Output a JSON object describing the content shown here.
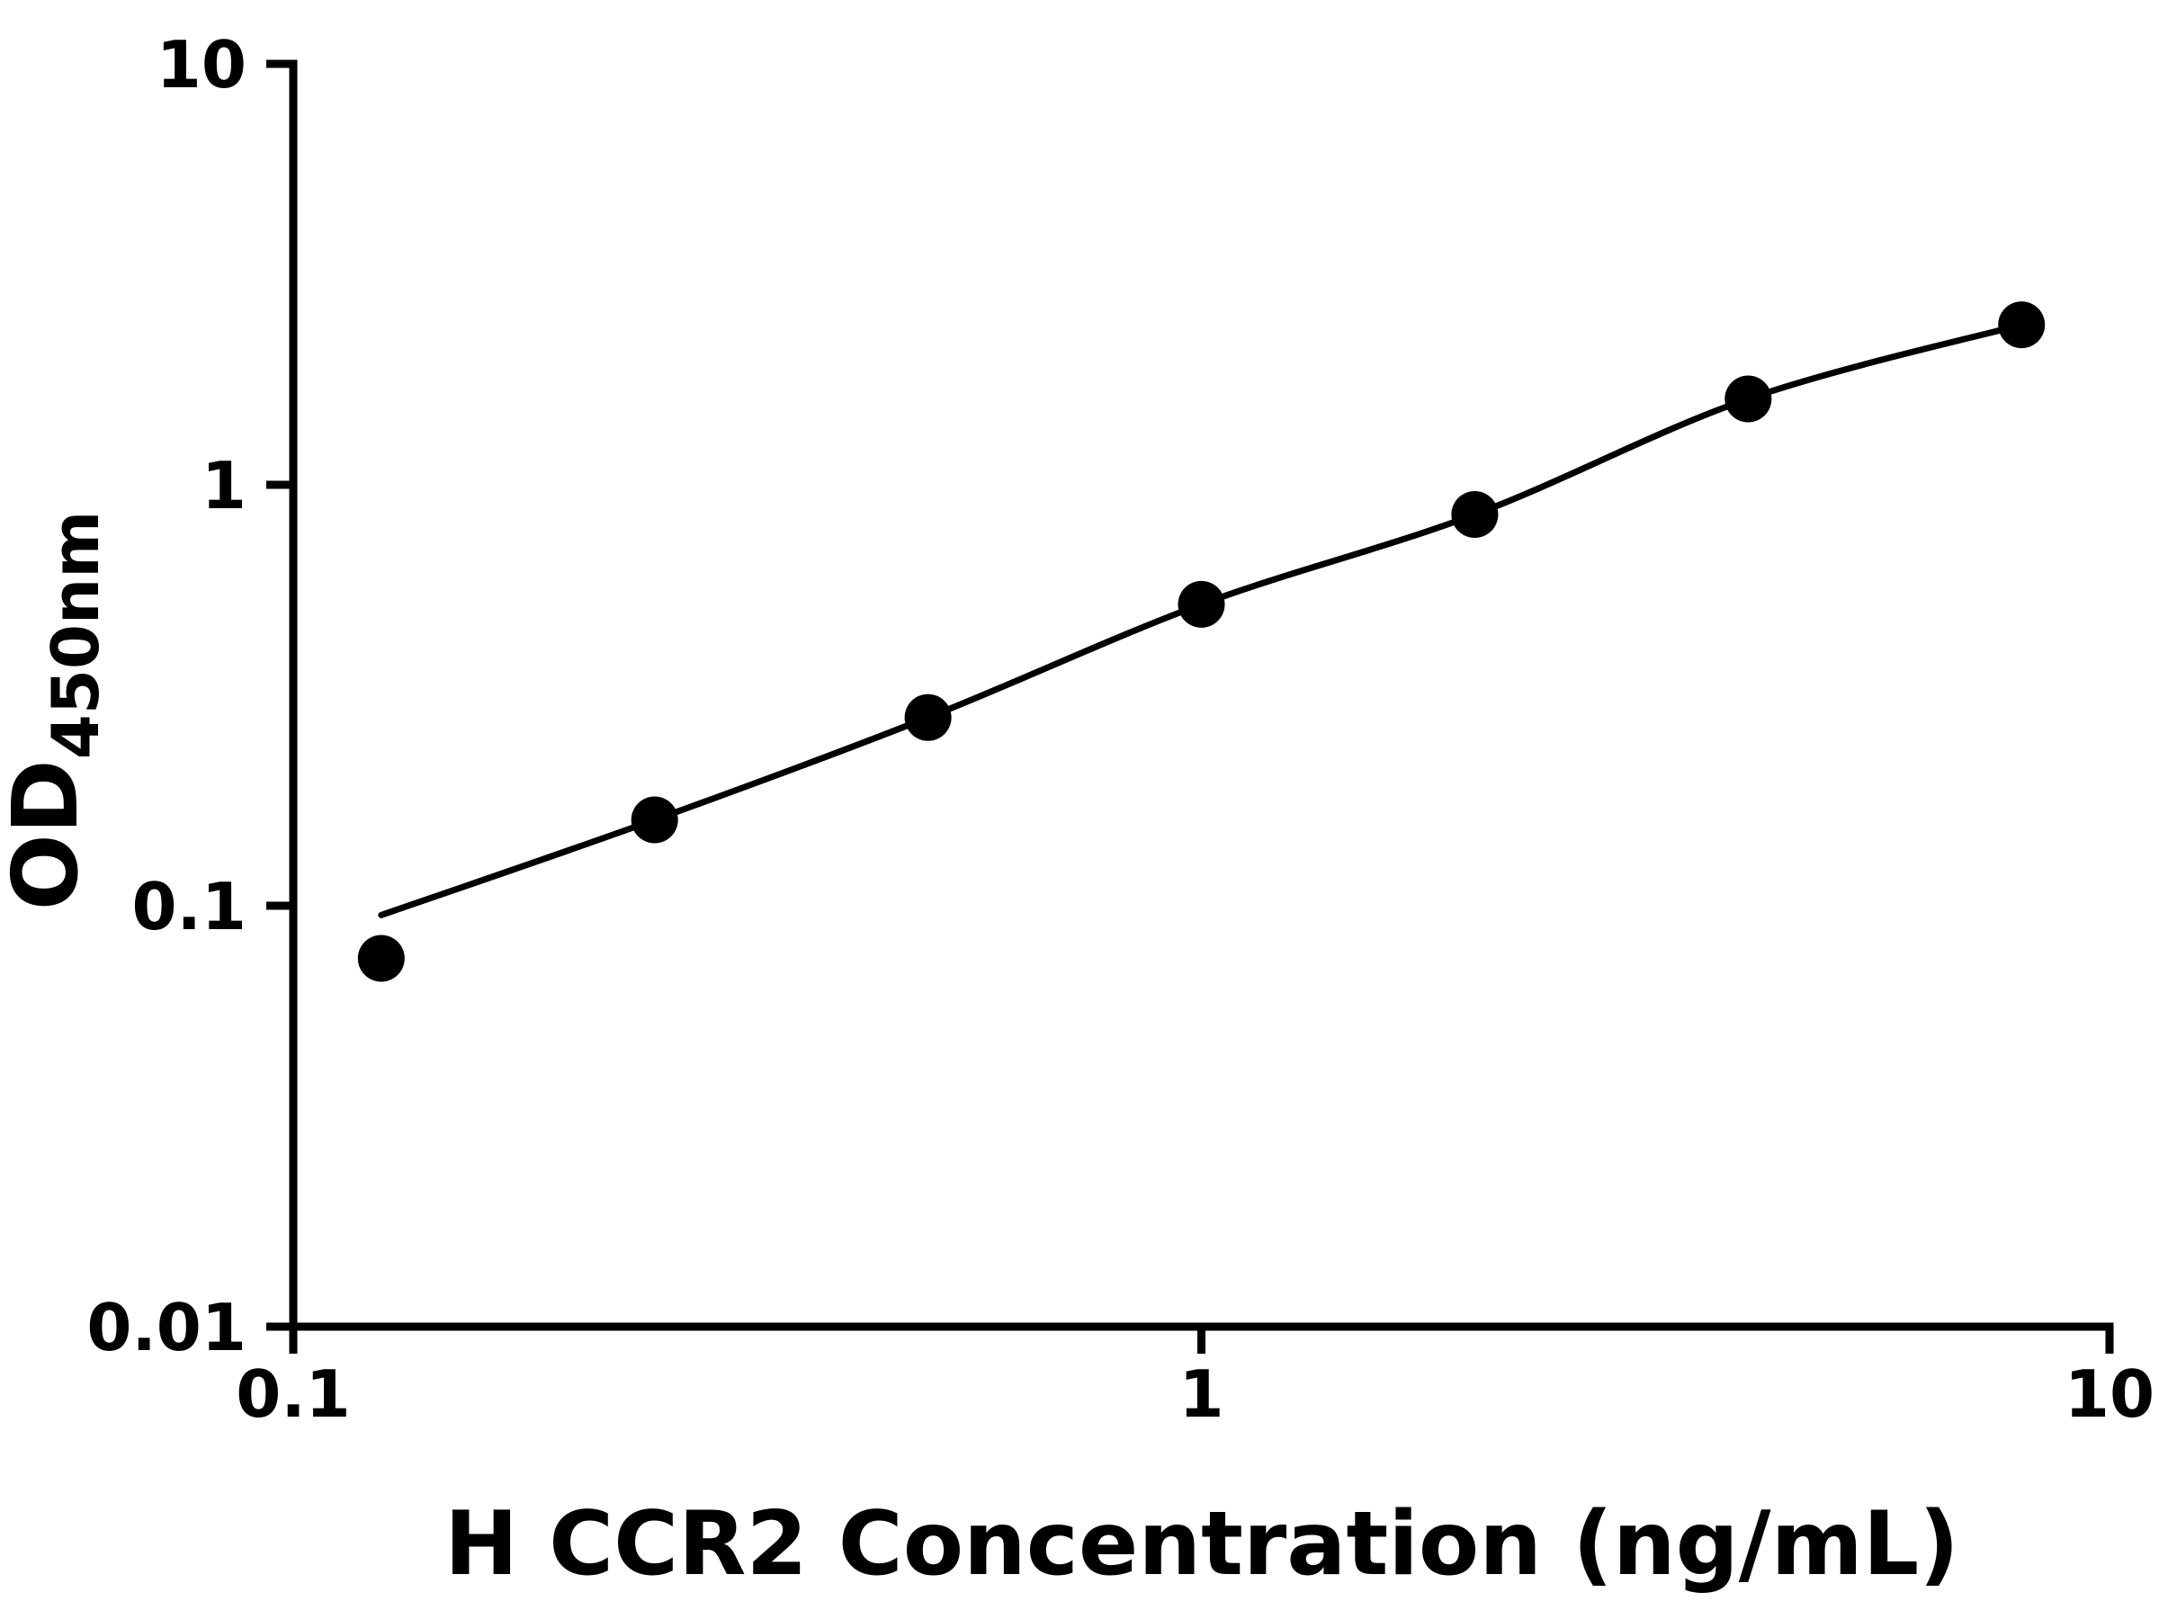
{
  "chart_data": {
    "type": "scatter",
    "title": "",
    "xlabel": "H CCR2 Concentration (ng/mL)",
    "ylabel": "OD",
    "ylabel_subscript": "450nm",
    "x_scale": "log",
    "y_scale": "log",
    "xlim": [
      0.1,
      10
    ],
    "ylim": [
      0.01,
      10
    ],
    "x_ticks": [
      0.1,
      1,
      10
    ],
    "x_tick_labels": [
      "0.1",
      "1",
      "10"
    ],
    "y_ticks": [
      0.01,
      0.1,
      1,
      10
    ],
    "y_tick_labels": [
      "0.01",
      "0.1",
      "1",
      "10"
    ],
    "grid": false,
    "legend": "none",
    "background_color": "#ffffff",
    "axis_color": "#000000",
    "marker_color": "#000000",
    "line_color": "#000000",
    "series": [
      {
        "name": "standard-curve-points",
        "type": "scatter",
        "x": [
          0.125,
          0.25,
          0.5,
          1,
          2,
          4,
          8
        ],
        "y": [
          0.075,
          0.16,
          0.28,
          0.52,
          0.85,
          1.6,
          2.4
        ]
      },
      {
        "name": "fit-curve",
        "type": "line",
        "x": [
          0.125,
          0.25,
          0.5,
          1,
          2,
          4,
          8
        ],
        "y": [
          0.095,
          0.16,
          0.28,
          0.52,
          0.85,
          1.6,
          2.4
        ]
      }
    ]
  }
}
